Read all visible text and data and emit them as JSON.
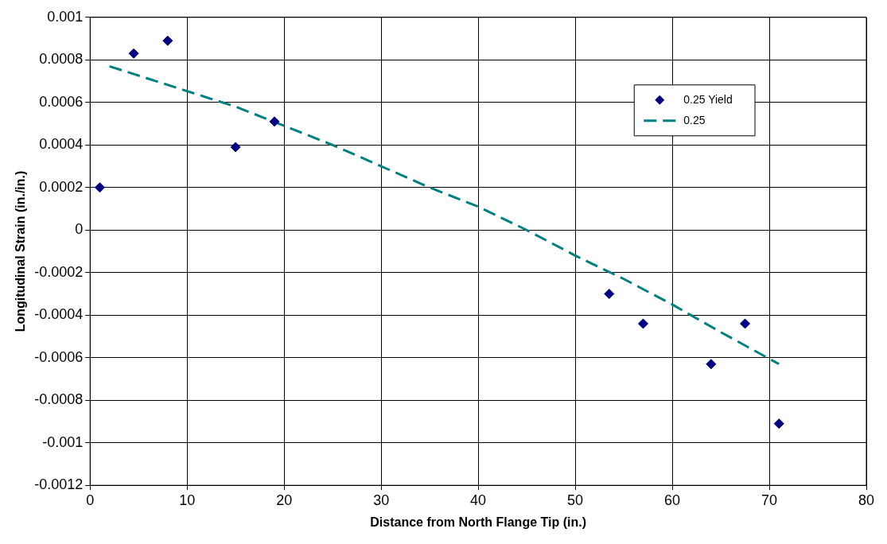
{
  "chart_data": {
    "type": "scatter",
    "xlabel": "Distance from North Flange Tip (in.)",
    "ylabel": "Longitudinal Strain (in./in.)",
    "xlim": [
      0,
      80
    ],
    "xticks": [
      0,
      10,
      20,
      30,
      40,
      50,
      60,
      70,
      80
    ],
    "ylim": [
      -0.0012,
      0.001
    ],
    "yticks": [
      -0.0012,
      -0.001,
      -0.0008,
      -0.0006,
      -0.0004,
      -0.0002,
      0,
      0.0002,
      0.0004,
      0.0006,
      0.0008,
      0.001
    ],
    "grid": true,
    "legend": "top right",
    "series": [
      {
        "name": "0.25 Yield",
        "marker": "diamond",
        "color": "#000080",
        "x": [
          1,
          4.5,
          8,
          15,
          19,
          53.5,
          57,
          64,
          67.5,
          71
        ],
        "values": [
          0.0002,
          0.00083,
          0.00089,
          0.00039,
          0.00051,
          -0.0003,
          -0.00044,
          -0.00063,
          -0.00044,
          -0.00091
        ]
      },
      {
        "name": "0.25",
        "type": "line",
        "line_style": "dashed",
        "marker": "none",
        "color": "#008080",
        "x": [
          2,
          15,
          20,
          25,
          30,
          35,
          40,
          45,
          50,
          55,
          60,
          65,
          71
        ],
        "values": [
          0.00077,
          0.00058,
          0.00049,
          0.0004,
          0.0003,
          0.0002,
          0.00011,
          0,
          -0.00012,
          -0.00023,
          -0.00035,
          -0.00048,
          -0.00063
        ]
      }
    ]
  }
}
